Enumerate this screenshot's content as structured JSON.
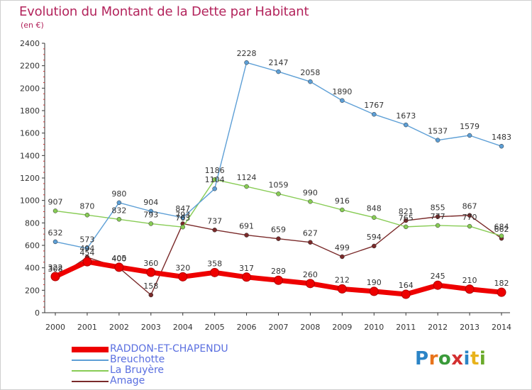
{
  "header": {
    "title": "Evolution du Montant de la Dette par Habitant",
    "unit": "(en €)"
  },
  "colors": {
    "title": "#b3245c",
    "legend_text": "#5a6fe0",
    "axis": "#333333",
    "grid": "#e2e2e2"
  },
  "logo": {
    "letters": [
      "P",
      "r",
      "o",
      "x",
      "i",
      "t",
      "i"
    ],
    "colors": [
      "#2b84c6",
      "#e8731a",
      "#3a9a3a",
      "#d32f2f",
      "#2b84c6",
      "#e8b21a",
      "#6aaa2a"
    ]
  },
  "chart_data": {
    "type": "line",
    "title": "Evolution du Montant de la Dette par Habitant",
    "subtitle": "(en €)",
    "xlabel": "",
    "ylabel": "",
    "categories": [
      "2000",
      "2001",
      "2002",
      "2003",
      "2004",
      "2005",
      "2006",
      "2007",
      "2008",
      "2009",
      "2010",
      "2011",
      "2012",
      "2013",
      "2014"
    ],
    "ylim": [
      0,
      2400
    ],
    "yticks": [
      0,
      200,
      400,
      600,
      800,
      1000,
      1200,
      1400,
      1600,
      1800,
      2000,
      2200,
      2400
    ],
    "grid": false,
    "legend_position": "bottom-left",
    "series": [
      {
        "name": "RADDON-ET-CHAPENDU",
        "color": "#ee0000",
        "values": [
          322,
          454,
          405,
          360,
          320,
          358,
          317,
          289,
          260,
          212,
          190,
          164,
          245,
          210,
          182
        ]
      },
      {
        "name": "Breuchotte",
        "color": "#5d9fd6",
        "values": [
          632,
          573,
          980,
          904,
          847,
          1104,
          2228,
          2147,
          2058,
          1890,
          1767,
          1673,
          1537,
          1579,
          1483
        ]
      },
      {
        "name": "La Bruyère",
        "color": "#88cc55",
        "values": [
          907,
          870,
          832,
          793,
          763,
          1186,
          1124,
          1059,
          990,
          916,
          848,
          765,
          777,
          770,
          684
        ]
      },
      {
        "name": "Amage",
        "color": "#7a2a2a",
        "values": [
          308,
          494,
          400,
          158,
          793,
          737,
          691,
          659,
          627,
          499,
          594,
          821,
          855,
          867,
          662
        ]
      }
    ]
  }
}
